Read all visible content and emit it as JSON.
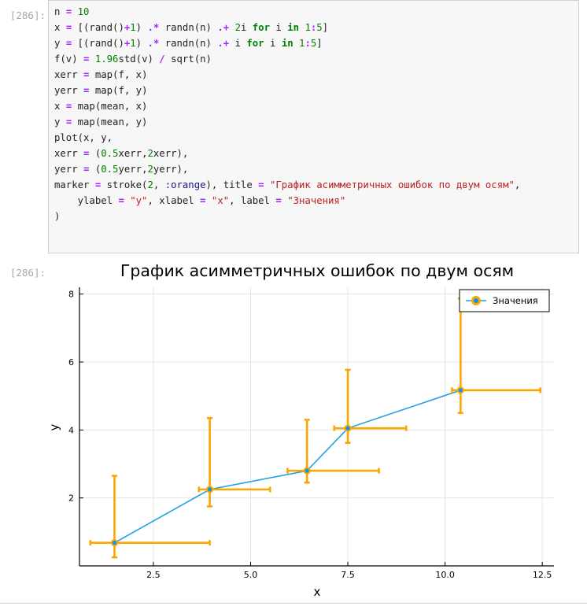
{
  "cell": {
    "input_prompt": "[286]:",
    "output_prompt": "[286]:",
    "code_lines": [
      [
        [
          "t",
          "n "
        ],
        [
          "o",
          "="
        ],
        [
          "t",
          " "
        ],
        [
          "n",
          "10"
        ]
      ],
      [
        [
          "t",
          "x "
        ],
        [
          "o",
          "="
        ],
        [
          "t",
          " [(rand()"
        ],
        [
          "o",
          "+"
        ],
        [
          "n",
          "1"
        ],
        [
          "t",
          ") "
        ],
        [
          "o",
          ".*"
        ],
        [
          "t",
          " randn(n) "
        ],
        [
          "o",
          ".+"
        ],
        [
          "t",
          " "
        ],
        [
          "n",
          "2"
        ],
        [
          "t",
          "i "
        ],
        [
          "k",
          "for"
        ],
        [
          "t",
          " i "
        ],
        [
          "k",
          "in"
        ],
        [
          "t",
          " "
        ],
        [
          "n",
          "1"
        ],
        [
          "o",
          ":"
        ],
        [
          "n",
          "5"
        ],
        [
          "t",
          "]"
        ]
      ],
      [
        [
          "t",
          "y "
        ],
        [
          "o",
          "="
        ],
        [
          "t",
          " [(rand()"
        ],
        [
          "o",
          "+"
        ],
        [
          "n",
          "1"
        ],
        [
          "t",
          ") "
        ],
        [
          "o",
          ".*"
        ],
        [
          "t",
          " randn(n) "
        ],
        [
          "o",
          ".+"
        ],
        [
          "t",
          " i "
        ],
        [
          "k",
          "for"
        ],
        [
          "t",
          " i "
        ],
        [
          "k",
          "in"
        ],
        [
          "t",
          " "
        ],
        [
          "n",
          "1"
        ],
        [
          "o",
          ":"
        ],
        [
          "n",
          "5"
        ],
        [
          "t",
          "]"
        ]
      ],
      [
        [
          "t",
          "f(v) "
        ],
        [
          "o",
          "="
        ],
        [
          "t",
          " "
        ],
        [
          "n",
          "1.96"
        ],
        [
          "t",
          "std(v) "
        ],
        [
          "o",
          "/"
        ],
        [
          "t",
          " sqrt(n)"
        ]
      ],
      [
        [
          "t",
          "xerr "
        ],
        [
          "o",
          "="
        ],
        [
          "t",
          " map(f, x)"
        ]
      ],
      [
        [
          "t",
          "yerr "
        ],
        [
          "o",
          "="
        ],
        [
          "t",
          " map(f, y)"
        ]
      ],
      [
        [
          "t",
          "x "
        ],
        [
          "o",
          "="
        ],
        [
          "t",
          " map(mean, x)"
        ]
      ],
      [
        [
          "t",
          "y "
        ],
        [
          "o",
          "="
        ],
        [
          "t",
          " map(mean, y)"
        ]
      ],
      [
        [
          "t",
          "plot(x, y,"
        ]
      ],
      [
        [
          "t",
          "xerr "
        ],
        [
          "o",
          "="
        ],
        [
          "t",
          " ("
        ],
        [
          "n",
          "0.5"
        ],
        [
          "t",
          "xerr,"
        ],
        [
          "n",
          "2"
        ],
        [
          "t",
          "xerr),"
        ]
      ],
      [
        [
          "t",
          "yerr "
        ],
        [
          "o",
          "="
        ],
        [
          "t",
          " ("
        ],
        [
          "n",
          "0.5"
        ],
        [
          "t",
          "yerr,"
        ],
        [
          "n",
          "2"
        ],
        [
          "t",
          "yerr),"
        ]
      ],
      [
        [
          "t",
          "marker "
        ],
        [
          "o",
          "="
        ],
        [
          "t",
          " stroke("
        ],
        [
          "n",
          "2"
        ],
        [
          "t",
          ", "
        ],
        [
          "y",
          ":orange"
        ],
        [
          "t",
          "), title "
        ],
        [
          "o",
          "="
        ],
        [
          "t",
          " "
        ],
        [
          "s",
          "\"График асимметричных ошибок по двум осям\""
        ],
        [
          "t",
          ","
        ]
      ],
      [
        [
          "t",
          "    ylabel "
        ],
        [
          "o",
          "="
        ],
        [
          "t",
          " "
        ],
        [
          "s",
          "\"y\""
        ],
        [
          "t",
          ", xlabel "
        ],
        [
          "o",
          "="
        ],
        [
          "t",
          " "
        ],
        [
          "s",
          "\"x\""
        ],
        [
          "t",
          ", label "
        ],
        [
          "o",
          "="
        ],
        [
          "t",
          " "
        ],
        [
          "s",
          "\"Значения\""
        ]
      ],
      [
        [
          "t",
          ")"
        ]
      ]
    ]
  },
  "colors": {
    "series_line": "#1fa1e6",
    "error_bars": "#ffa500",
    "marker_fill": "#009af9",
    "prompt": "#a8a8a8"
  },
  "chart_data": {
    "type": "line",
    "title": "График асимметричных ошибок по двум осям",
    "xlabel": "x",
    "ylabel": "y",
    "xlim": [
      0.6,
      12.8
    ],
    "ylim": [
      0,
      8.2
    ],
    "xticks": [
      2.5,
      5.0,
      7.5,
      10.0,
      12.5
    ],
    "xtick_labels": [
      "2.5",
      "5.0",
      "7.5",
      "10.0",
      "12.5"
    ],
    "yticks": [
      2,
      4,
      6,
      8
    ],
    "ytick_labels": [
      "2",
      "4",
      "6",
      "8"
    ],
    "grid": true,
    "legend": "top-right",
    "series": [
      {
        "name": "Значения",
        "x": [
          1.5,
          3.95,
          6.45,
          7.5,
          10.4
        ],
        "y": [
          0.68,
          2.25,
          2.8,
          4.05,
          5.17
        ],
        "xerr_minus": [
          0.62,
          0.28,
          0.5,
          0.35,
          0.22
        ],
        "xerr_plus": [
          2.45,
          1.55,
          1.85,
          1.5,
          2.05
        ],
        "yerr_minus": [
          0.43,
          0.5,
          0.35,
          0.43,
          0.67
        ],
        "yerr_plus": [
          1.97,
          2.1,
          1.5,
          1.72,
          2.7
        ]
      }
    ]
  }
}
